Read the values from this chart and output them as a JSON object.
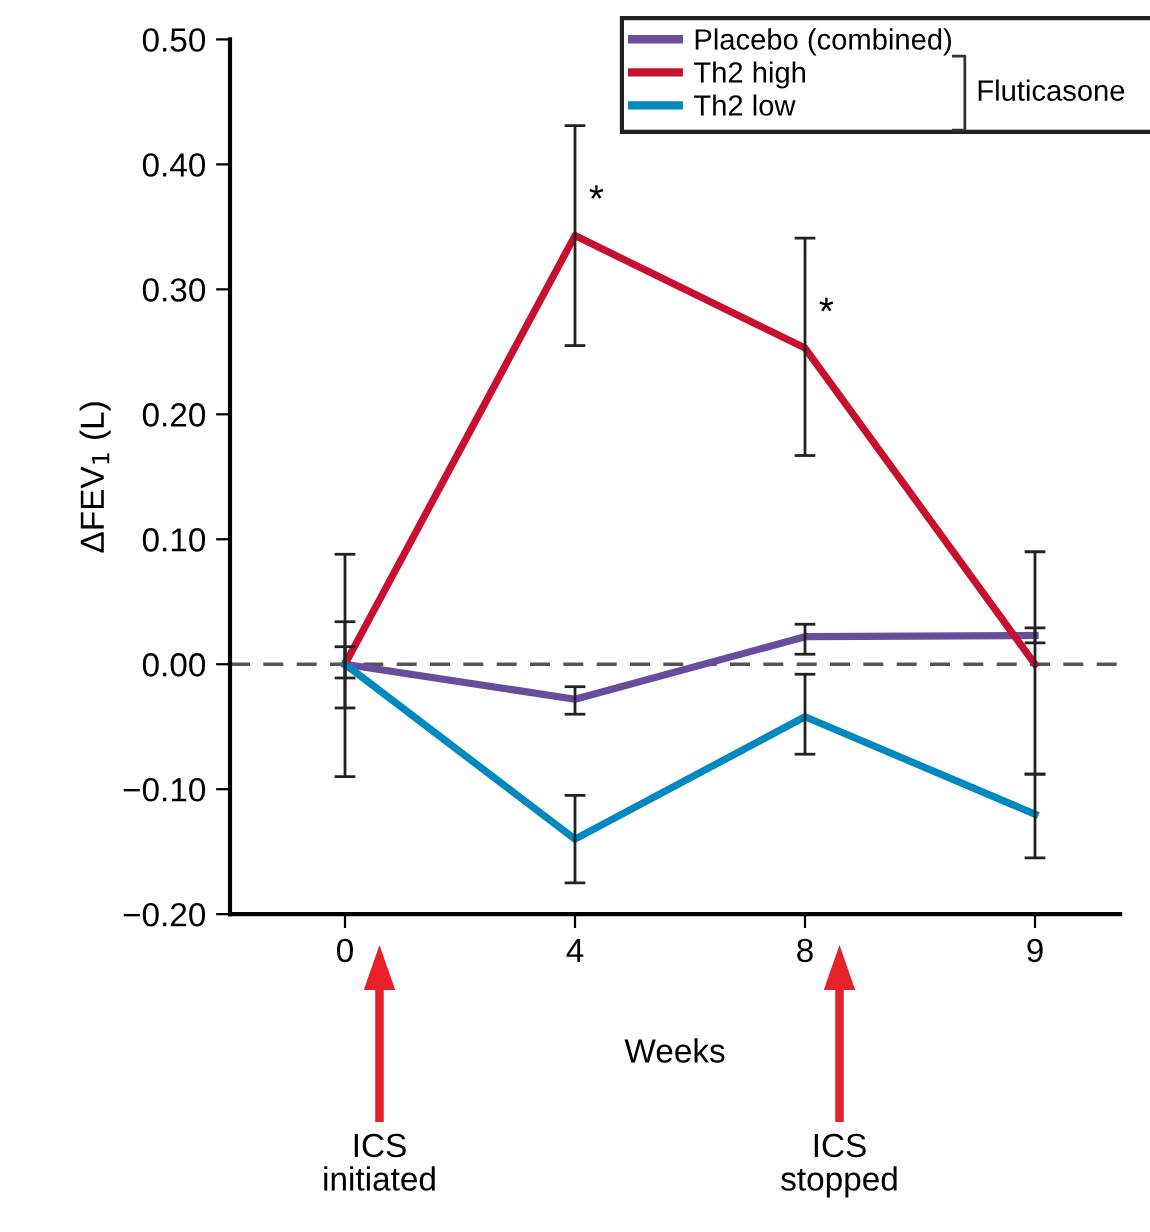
{
  "chart_data": {
    "type": "line",
    "xlabel": "Weeks",
    "ylabel": "ΔFEV$_{1}$ (L)",
    "categories": [
      "0",
      "4",
      "8",
      "9"
    ],
    "series": [
      {
        "name": "Placebo (combined)",
        "color": "#6a4c9c",
        "values": [
          0,
          -0.028,
          0.022,
          0.023
        ],
        "errors": [
          [
            -0.011,
            0.014
          ],
          [
            -0.04,
            -0.018
          ],
          [
            0.008,
            0.032
          ],
          [
            0.017,
            0.029
          ]
        ]
      },
      {
        "name": "Th2 high",
        "color": "#c8102e",
        "values": [
          0,
          0.343,
          0.253,
          0
        ],
        "errors": [
          [
            -0.09,
            0.088
          ],
          [
            0.255,
            0.431
          ],
          [
            0.167,
            0.341
          ],
          [
            -0.088,
            0.09
          ]
        ]
      },
      {
        "name": "Th2 low",
        "color": "#0088c0",
        "values": [
          0,
          -0.14,
          -0.042,
          -0.12
        ],
        "errors": [
          [
            -0.035,
            0.034
          ],
          [
            -0.175,
            -0.105
          ],
          [
            -0.072,
            -0.008
          ],
          [
            -0.155,
            -0.088
          ]
        ]
      }
    ],
    "ylim": [
      -0.2,
      0.5
    ],
    "yticks": [
      {
        "value": -0.2,
        "label": "−0.20"
      },
      {
        "value": -0.1,
        "label": "−0.10"
      },
      {
        "value": 0,
        "label": "0.00"
      },
      {
        "value": 0.1,
        "label": "0.10"
      },
      {
        "value": 0.2,
        "label": "0.20"
      },
      {
        "value": 0.3,
        "label": "0.30"
      },
      {
        "value": 0.4,
        "label": "0.40"
      },
      {
        "value": 0.5,
        "label": "0.50"
      }
    ],
    "ref_lines": [
      {
        "axis": "y",
        "value": 0,
        "color": "#555555",
        "line_style": "dashed"
      }
    ],
    "annotations": [
      {
        "text": "*",
        "x": "4",
        "y": 0.37
      },
      {
        "text": "*",
        "x": "8",
        "y": 0.28
      },
      "ICS\ninitiated",
      "ICS\nstopped",
      "Fluticasone"
    ],
    "legend": "top right",
    "grid": false,
    "marker": "none",
    "line_style": "solid"
  }
}
